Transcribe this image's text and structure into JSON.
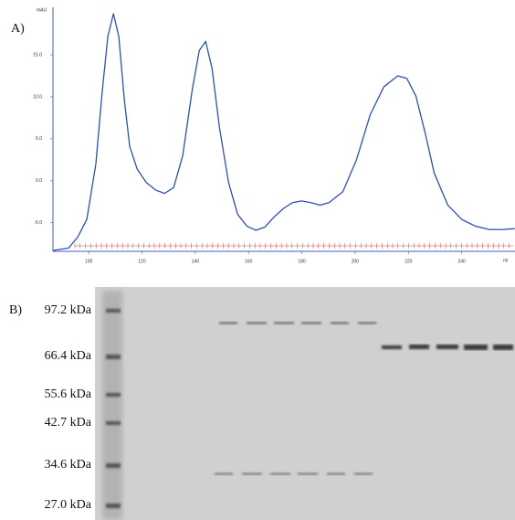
{
  "chart_data": {
    "type": "line",
    "panel_label": "A)",
    "y_label": "mAU",
    "x_label": "ml",
    "x": [
      86.6,
      92.5,
      95.9,
      99.3,
      102.7,
      105.1,
      107.2,
      109.3,
      111.3,
      113.4,
      115.4,
      118.2,
      121.6,
      125.1,
      128.5,
      131.9,
      135.3,
      138.8,
      141.5,
      143.9,
      146.3,
      149.1,
      152.5,
      155.9,
      159.4,
      162.8,
      166.2,
      169.6,
      173.1,
      176.5,
      179.9,
      183.4,
      186.8,
      190.2,
      195.4,
      200.5,
      205.7,
      210.8,
      216.0,
      219.4,
      222.8,
      226.2,
      229.7,
      234.8,
      240.0,
      245.1,
      250.3,
      255.4,
      259.9
    ],
    "values": [
      -8.3,
      -8.0,
      -6.7,
      -4.6,
      2.0,
      10.7,
      17.2,
      19.9,
      17.2,
      9.6,
      4.1,
      1.4,
      -0.2,
      -1.1,
      -1.5,
      -0.8,
      3.0,
      10.7,
      15.5,
      16.6,
      13.4,
      6.3,
      -0.2,
      -4.0,
      -5.4,
      -5.9,
      -5.5,
      -4.3,
      -3.3,
      -2.6,
      -2.4,
      -2.6,
      -2.9,
      -2.6,
      -1.3,
      2.5,
      7.9,
      11.2,
      12.5,
      12.2,
      10.1,
      5.8,
      0.9,
      -2.9,
      -4.6,
      -5.4,
      -5.8,
      -5.8,
      -5.7
    ],
    "color": "#2f4fb0",
    "xlim": [
      86.6,
      260
    ],
    "ylim": [
      -8.4,
      19.9
    ],
    "xticks": [
      100,
      120,
      140,
      160,
      180,
      200,
      220,
      240
    ],
    "yticks": [
      {
        "value": -5,
        "label": "-5.0"
      },
      {
        "value": 0,
        "label": "0.0"
      },
      {
        "value": 5,
        "label": "5.0"
      },
      {
        "value": 10,
        "label": "10.0"
      },
      {
        "value": 15,
        "label": "15.0"
      }
    ]
  },
  "gel": {
    "panel_label": "B)",
    "markers": [
      "97.2 kDa",
      "66.4 kDa",
      "55.6 kDa",
      "42.7 kDa",
      "34.6 kDa",
      "27.0 kDa"
    ]
  }
}
